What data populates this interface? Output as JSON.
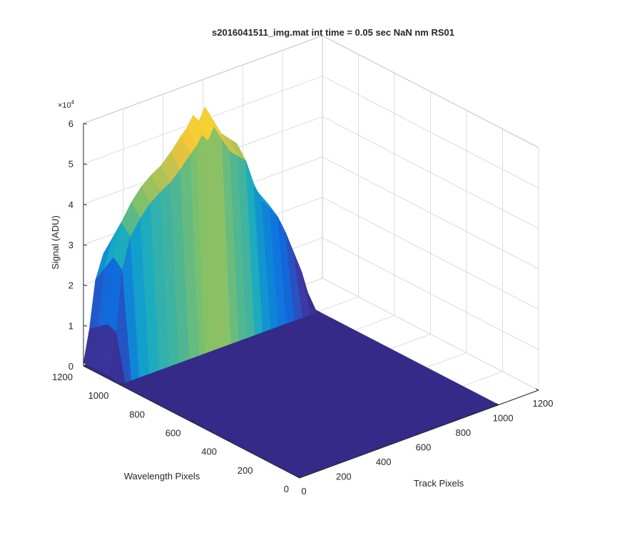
{
  "chart_data": {
    "type": "surface",
    "title": "s2016041511_img.mat int time = 0.05 sec  NaN nm RS01",
    "xlabel": "Track Pixels",
    "ylabel": "Wavelength Pixels",
    "zlabel": "Signal (ADU)",
    "z_exponent_label": "×10",
    "z_exponent_power": "4",
    "xlim": [
      0,
      1200
    ],
    "ylim": [
      0,
      1200
    ],
    "zlim": [
      0,
      60000
    ],
    "x_ticks": [
      "0",
      "200",
      "400",
      "600",
      "800",
      "1000",
      "1200"
    ],
    "y_ticks": [
      "0",
      "200",
      "400",
      "600",
      "800",
      "1000",
      "1200"
    ],
    "z_ticks": [
      "0",
      "1",
      "2",
      "3",
      "4",
      "5",
      "6"
    ],
    "grid": true,
    "colormap": "parula",
    "colors": {
      "floor": "#352a87",
      "low": "#3c3ba8",
      "mid_low": "#0d6fe1",
      "mid": "#14a9c6",
      "mid_high": "#7fc16a",
      "high": "#f2c43a",
      "peak": "#f9e824"
    },
    "surface": {
      "nonzero_x_range": [
        0,
        1000
      ],
      "nonzero_y_range": [
        1000,
        1200
      ],
      "peak_signal": 57000,
      "profile_along_track": [
        [
          0,
          1000
        ],
        [
          30,
          12000
        ],
        [
          60,
          28000
        ],
        [
          100,
          36000
        ],
        [
          150,
          40000
        ],
        [
          200,
          43000
        ],
        [
          250,
          45000
        ],
        [
          300,
          46500
        ],
        [
          350,
          49000
        ],
        [
          400,
          52000
        ],
        [
          430,
          53500
        ],
        [
          460,
          56000
        ],
        [
          490,
          54000
        ],
        [
          520,
          57000
        ],
        [
          560,
          53000
        ],
        [
          600,
          49000
        ],
        [
          640,
          47000
        ],
        [
          680,
          45000
        ],
        [
          720,
          38000
        ],
        [
          760,
          33000
        ],
        [
          800,
          30000
        ],
        [
          840,
          27000
        ],
        [
          880,
          22000
        ],
        [
          920,
          16000
        ],
        [
          960,
          10000
        ],
        [
          990,
          4000
        ],
        [
          1000,
          0
        ]
      ]
    }
  }
}
